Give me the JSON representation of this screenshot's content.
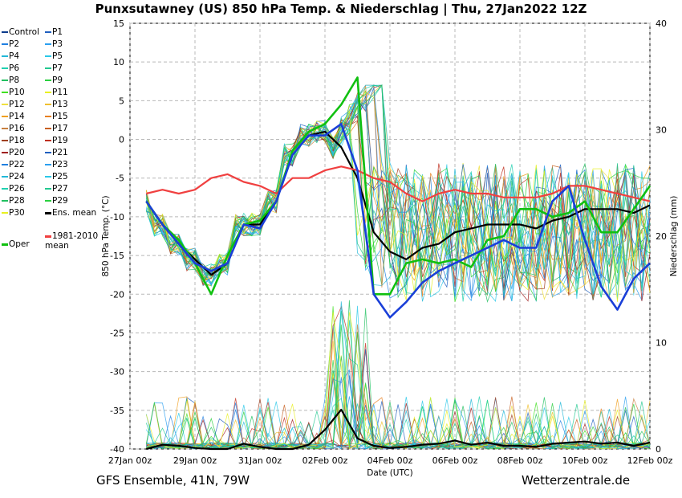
{
  "header": {
    "title": "Punxsutawney  (US)  850 hPa Temp. & Niederschlag | Thu, 27Jan2022 12Z"
  },
  "footer": {
    "left": "GFS Ensemble, 41N, 79W",
    "right": "Wetterzentrale.de"
  },
  "legend": [
    {
      "label": "Control",
      "color": "#0b3b8c"
    },
    {
      "label": "P1",
      "color": "#1f5fbf"
    },
    {
      "label": "P2",
      "color": "#1f7fe0"
    },
    {
      "label": "P3",
      "color": "#2a9ff0"
    },
    {
      "label": "P4",
      "color": "#22b8d8"
    },
    {
      "label": "P5",
      "color": "#2ac8e8"
    },
    {
      "label": "P6",
      "color": "#20d0b0"
    },
    {
      "label": "P7",
      "color": "#22c890"
    },
    {
      "label": "P8",
      "color": "#22c060"
    },
    {
      "label": "P9",
      "color": "#2ad040"
    },
    {
      "label": "P10",
      "color": "#40e020"
    },
    {
      "label": "P11",
      "color": "#e8f020"
    },
    {
      "label": "P12",
      "color": "#f0e040"
    },
    {
      "label": "P13",
      "color": "#f0c030"
    },
    {
      "label": "P14",
      "color": "#f0a020"
    },
    {
      "label": "P15",
      "color": "#e88020"
    },
    {
      "label": "P16",
      "color": "#c88040"
    },
    {
      "label": "P17",
      "color": "#c86020"
    },
    {
      "label": "P18",
      "color": "#a04020"
    },
    {
      "label": "P19",
      "color": "#c03020"
    },
    {
      "label": "P20",
      "color": "#a02020"
    },
    {
      "label": "P21",
      "color": "#1f5fbf"
    },
    {
      "label": "P22",
      "color": "#1f7fe0"
    },
    {
      "label": "P23",
      "color": "#2a9ff0"
    },
    {
      "label": "P24",
      "color": "#22b8d8"
    },
    {
      "label": "P25",
      "color": "#2ac8e8"
    },
    {
      "label": "P26",
      "color": "#20d0b0"
    },
    {
      "label": "P27",
      "color": "#22c890"
    },
    {
      "label": "P28",
      "color": "#22c060"
    },
    {
      "label": "P29",
      "color": "#2ad040"
    },
    {
      "label": "P30",
      "color": "#e8f020"
    },
    {
      "label": "Ens. mean",
      "color": "#000000",
      "thick": true
    },
    {
      "label": "Oper",
      "color": "#10c010",
      "thick": true
    },
    {
      "label": "1981-2010\nmean",
      "color": "#f04040",
      "thick": true
    }
  ],
  "chart_data": {
    "type": "line",
    "xlabel": "Date (UTC)",
    "ylabel": "850 hPa Temp. (°C)",
    "ylabel_right": "Niederschlag (mm)",
    "ylim": [
      -40,
      15
    ],
    "ylim_right": [
      0,
      40
    ],
    "yticks": [
      15,
      10,
      5,
      0,
      -5,
      -10,
      -15,
      -20,
      -25,
      -30,
      -35,
      -40
    ],
    "yticks_right": [
      40,
      30,
      20,
      10,
      0
    ],
    "xticks": [
      "27Jan 00z",
      "29Jan 00z",
      "31Jan 00z",
      "02Feb 00z",
      "04Feb 00z",
      "06Feb 00z",
      "08Feb 00z",
      "10Feb 00z",
      "12Feb 00z"
    ],
    "x_start_day": 0.5,
    "x_end_day": 16.5,
    "grid": true,
    "series": [
      {
        "name": "Ens. mean",
        "color": "#000000",
        "width": 2.2,
        "days": [
          1,
          1.5,
          2,
          2.5,
          3,
          3.5,
          4,
          4.5,
          5,
          5.5,
          6,
          6.5,
          7,
          7.5,
          8,
          8.5,
          9,
          9.5,
          10,
          10.5,
          11,
          11.5,
          12,
          12.5,
          13,
          13.5,
          14,
          14.5,
          15,
          15.5,
          16,
          16.5
        ],
        "values": [
          -8,
          -11,
          -13.5,
          -15.5,
          -17.5,
          -16,
          -11,
          -11,
          -8,
          -2,
          0.5,
          1,
          -1,
          -5,
          -12,
          -14.5,
          -15.5,
          -14,
          -13.5,
          -12,
          -11.5,
          -11,
          -11,
          -11,
          -11.5,
          -10.5,
          -10,
          -9,
          -9,
          -9,
          -9.5,
          -8.5
        ]
      },
      {
        "name": "1981-2010 mean",
        "color": "#f04040",
        "width": 2.2,
        "days": [
          1,
          1.5,
          2,
          2.5,
          3,
          3.5,
          4,
          4.5,
          5,
          5.5,
          6,
          6.5,
          7,
          7.5,
          8,
          8.5,
          9,
          9.5,
          10,
          10.5,
          11,
          11.5,
          12,
          12.5,
          13,
          13.5,
          14,
          14.5,
          15,
          15.5,
          16,
          16.5
        ],
        "values": [
          -7,
          -6.5,
          -7,
          -6.5,
          -5,
          -4.5,
          -5.5,
          -6,
          -7,
          -5,
          -5,
          -4,
          -3.5,
          -4,
          -5,
          -5.5,
          -7,
          -8,
          -7,
          -6.5,
          -7,
          -7,
          -7.5,
          -7.5,
          -7.5,
          -7,
          -6,
          -6,
          -6.5,
          -7,
          -7.5,
          -8
        ]
      },
      {
        "name": "Oper",
        "color": "#10c010",
        "width": 2.6,
        "days": [
          1,
          1.5,
          2,
          2.5,
          3,
          3.5,
          4,
          4.5,
          5,
          5.5,
          6,
          6.5,
          7,
          7.5,
          8,
          8.5,
          9,
          9.5,
          10,
          10.5,
          11,
          11.5,
          12,
          12.5,
          13,
          13.5,
          14,
          14.5,
          15,
          15.5,
          16,
          16.5
        ],
        "values": [
          -8,
          -11,
          -13,
          -16,
          -20,
          -15,
          -11,
          -10.5,
          -8,
          -1.5,
          1,
          2,
          4.5,
          8,
          -20,
          -20,
          -16,
          -15.5,
          -16,
          -15.5,
          -16.5,
          -13,
          -12.5,
          -9,
          -9,
          -10,
          -9.5,
          -8,
          -12,
          -12,
          -9,
          -6
        ]
      },
      {
        "name": "Control",
        "color": "#1a3fd8",
        "width": 2.6,
        "days": [
          1,
          1.5,
          2,
          2.5,
          3,
          3.5,
          4,
          4.5,
          5,
          5.5,
          6,
          6.5,
          7,
          7.5,
          8,
          8.5,
          9,
          9.5,
          10,
          10.5,
          11,
          11.5,
          12,
          12.5,
          13,
          13.5,
          14,
          14.5,
          15,
          15.5,
          16,
          16.5
        ],
        "values": [
          -8,
          -11,
          -13.5,
          -16,
          -17,
          -16,
          -11,
          -11.5,
          -8,
          -2,
          0.5,
          0.5,
          2,
          -4,
          -20,
          -23,
          -21,
          -18.5,
          -17,
          -16,
          -15,
          -14,
          -13,
          -14,
          -14,
          -8,
          -6,
          -13,
          -19,
          -22,
          -18,
          -16
        ]
      },
      {
        "name": "Ens. mean precip",
        "color": "#000000",
        "width": 2.2,
        "axis": "right",
        "days": [
          1,
          1.5,
          2,
          2.5,
          3,
          3.5,
          4,
          4.5,
          5,
          5.5,
          6,
          6.5,
          7,
          7.5,
          8,
          8.5,
          9,
          9.5,
          10,
          10.5,
          11,
          11.5,
          12,
          12.5,
          13,
          13.5,
          14,
          14.5,
          15,
          15.5,
          16,
          16.5
        ],
        "values": [
          0,
          0.4,
          0.3,
          0.1,
          0,
          0,
          0.5,
          0.2,
          0,
          0,
          0.4,
          1.8,
          3.7,
          1.0,
          0.3,
          0.1,
          0.2,
          0.4,
          0.5,
          0.8,
          0.4,
          0.6,
          0.3,
          0.3,
          0.2,
          0.5,
          0.6,
          0.7,
          0.5,
          0.6,
          0.3,
          0.6
        ]
      }
    ]
  }
}
